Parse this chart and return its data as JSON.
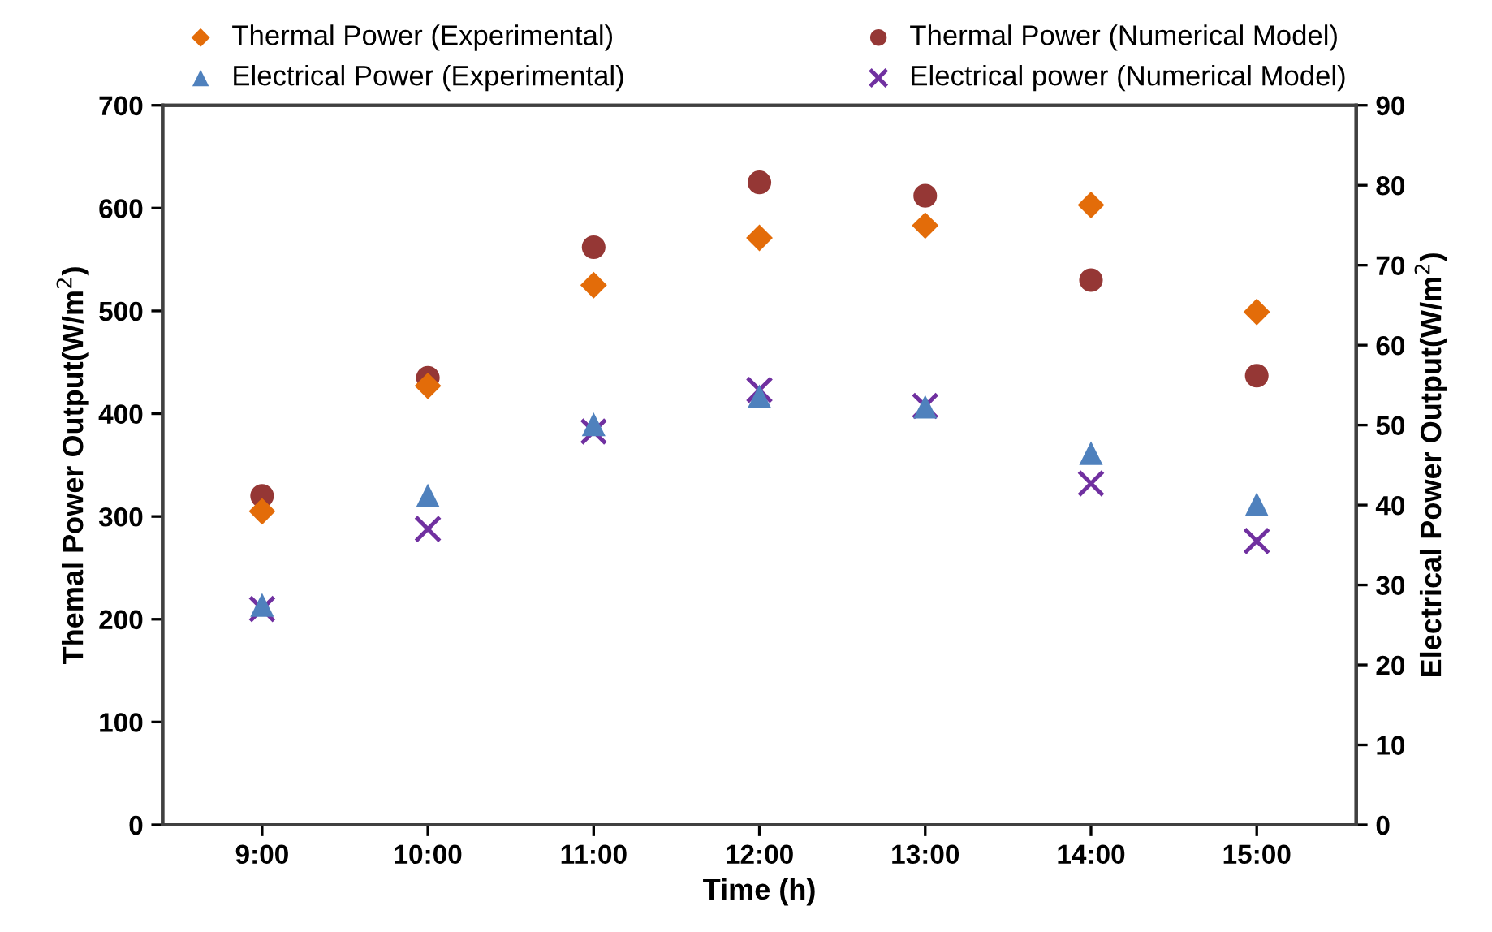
{
  "chart_data": {
    "type": "scatter",
    "xlabel": "Time (h)",
    "ylabel": "Themal Power Output(W/m$^{2}$)",
    "y2label": "Electrical Power Output(W/m$^{2}$)",
    "categories": [
      "9:00",
      "10:00",
      "11:00",
      "12:00",
      "13:00",
      "14:00",
      "15:00"
    ],
    "series": [
      {
        "name": "Thermal Power (Experimental)",
        "color": "#e36c09",
        "marker": "diamond",
        "values": [
          305,
          427,
          525,
          571,
          583,
          603,
          499
        ]
      },
      {
        "name": "Thermal Power (Numerical Model)",
        "color": "#953735",
        "marker": "circle",
        "values": [
          320,
          435,
          562,
          625,
          612,
          530,
          437
        ]
      },
      {
        "name": "Electrical Power (Experimental)",
        "color": "#4f81bd",
        "marker": "triangle",
        "axis": "y2",
        "values": [
          27.5,
          41.2,
          50.1,
          53.6,
          52.3,
          46.5,
          40.1
        ]
      },
      {
        "name": "Electrical power (Numerical Model)",
        "color": "#7030a0",
        "marker": "cross",
        "axis": "y2",
        "values": [
          27,
          37,
          49.2,
          54.4,
          52.4,
          42.7,
          35.5
        ]
      }
    ],
    "ylim": [
      0,
      700
    ],
    "yticks": [
      0,
      100,
      200,
      300,
      400,
      500,
      600,
      700
    ],
    "y2lim": [
      0,
      90
    ],
    "y2ticks": [
      0,
      10,
      20,
      30,
      40,
      50,
      60,
      70,
      80,
      90
    ],
    "grid": false,
    "legend": "top"
  }
}
